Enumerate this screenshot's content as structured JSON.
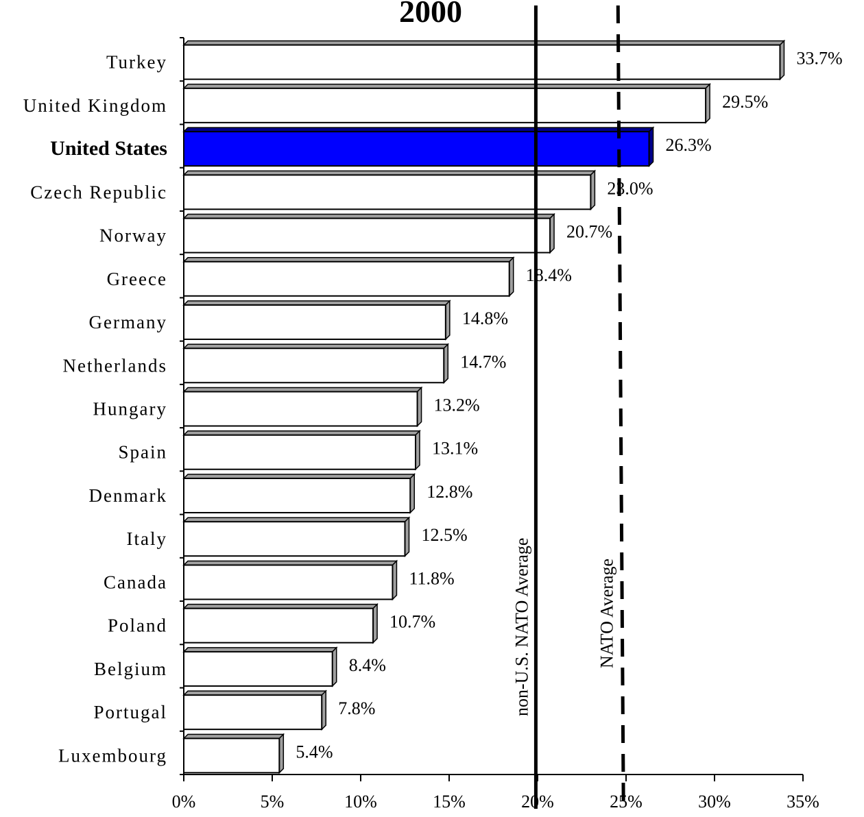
{
  "chart_data": {
    "type": "bar",
    "orientation": "horizontal",
    "title": "2000",
    "categories": [
      "Turkey",
      "United Kingdom",
      "United States",
      "Czech Republic",
      "Norway",
      "Greece",
      "Germany",
      "Netherlands",
      "Hungary",
      "Spain",
      "Denmark",
      "Italy",
      "Canada",
      "Poland",
      "Belgium",
      "Portugal",
      "Luxembourg"
    ],
    "values": [
      33.7,
      29.5,
      26.3,
      23.0,
      20.7,
      18.4,
      14.8,
      14.7,
      13.2,
      13.1,
      12.8,
      12.5,
      11.8,
      10.7,
      8.4,
      7.8,
      5.4
    ],
    "value_labels": [
      "33.7%",
      "29.5%",
      "26.3%",
      "23.0%",
      "20.7%",
      "18.4%",
      "14.8%",
      "14.7%",
      "13.2%",
      "13.1%",
      "12.8%",
      "12.5%",
      "11.8%",
      "10.7%",
      "8.4%",
      "7.8%",
      "5.4%"
    ],
    "highlight": "United States",
    "xlim": [
      0,
      35
    ],
    "xticks": [
      0,
      5,
      10,
      15,
      20,
      25,
      30,
      35
    ],
    "xtick_labels": [
      "0%",
      "5%",
      "10%",
      "15%",
      "20%",
      "25%",
      "30%",
      "35%"
    ],
    "reference_lines": [
      {
        "label": "non-U.S. NATO Average",
        "value": 19.9,
        "style": "solid"
      },
      {
        "label": "NATO Average",
        "value": 24.7,
        "style": "dashed"
      }
    ],
    "colors": {
      "bar": "#ffffff",
      "highlight": "#0000ff",
      "bar_edge": "#000000",
      "bar_shade": "#a0a0a0"
    },
    "grid": false,
    "legend": "none"
  }
}
